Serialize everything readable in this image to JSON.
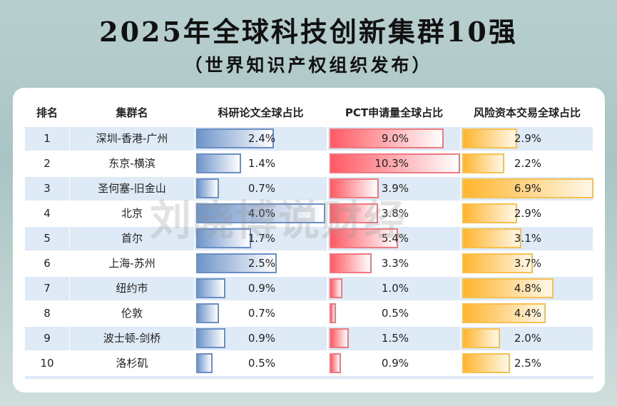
{
  "title": "2025年全球科技创新集群10强",
  "subtitle": "（世界知识产权组织发布）",
  "watermark": "刘晓博说财经",
  "colors": {
    "papers": "#6f95c9",
    "pct": "#ff5a63",
    "vc": "#ffb52e",
    "row_alt": "#deebf6"
  },
  "chart_data": {
    "type": "table",
    "columns": [
      "排名",
      "集群名",
      "科研论文全球占比",
      "PCT申请量全球占比",
      "风险资本交易全球占比"
    ],
    "rows": [
      {
        "rank": "1",
        "name": "深圳-香港-广州",
        "values": [
          2.4,
          9.0,
          2.9
        ],
        "labels": [
          "2.4%",
          "9.0%",
          "2.9%"
        ]
      },
      {
        "rank": "2",
        "name": "东京-横滨",
        "values": [
          1.4,
          10.3,
          2.2
        ],
        "labels": [
          "1.4%",
          "10.3%",
          "2.2%"
        ]
      },
      {
        "rank": "3",
        "name": "圣何塞-旧金山",
        "values": [
          0.7,
          3.9,
          6.9
        ],
        "labels": [
          "0.7%",
          "3.9%",
          "6.9%"
        ]
      },
      {
        "rank": "4",
        "name": "北京",
        "values": [
          4.0,
          3.8,
          2.9
        ],
        "labels": [
          "4.0%",
          "3.8%",
          "2.9%"
        ]
      },
      {
        "rank": "5",
        "name": "首尔",
        "values": [
          1.7,
          5.4,
          3.1
        ],
        "labels": [
          "1.7%",
          "5.4%",
          "3.1%"
        ]
      },
      {
        "rank": "6",
        "name": "上海-苏州",
        "values": [
          2.5,
          3.3,
          3.7
        ],
        "labels": [
          "2.5%",
          "3.3%",
          "3.7%"
        ]
      },
      {
        "rank": "7",
        "name": "纽约市",
        "values": [
          0.9,
          1.0,
          4.8
        ],
        "labels": [
          "0.9%",
          "1.0%",
          "4.8%"
        ]
      },
      {
        "rank": "8",
        "name": "伦敦",
        "values": [
          0.7,
          0.5,
          4.4
        ],
        "labels": [
          "0.7%",
          "0.5%",
          "4.4%"
        ]
      },
      {
        "rank": "9",
        "name": "波士顿-剑桥",
        "values": [
          0.9,
          1.5,
          2.0
        ],
        "labels": [
          "0.9%",
          "1.5%",
          "2.0%"
        ]
      },
      {
        "rank": "10",
        "name": "洛杉矶",
        "values": [
          0.5,
          0.9,
          2.5
        ],
        "labels": [
          "0.5%",
          "0.9%",
          "2.5%"
        ]
      }
    ]
  }
}
